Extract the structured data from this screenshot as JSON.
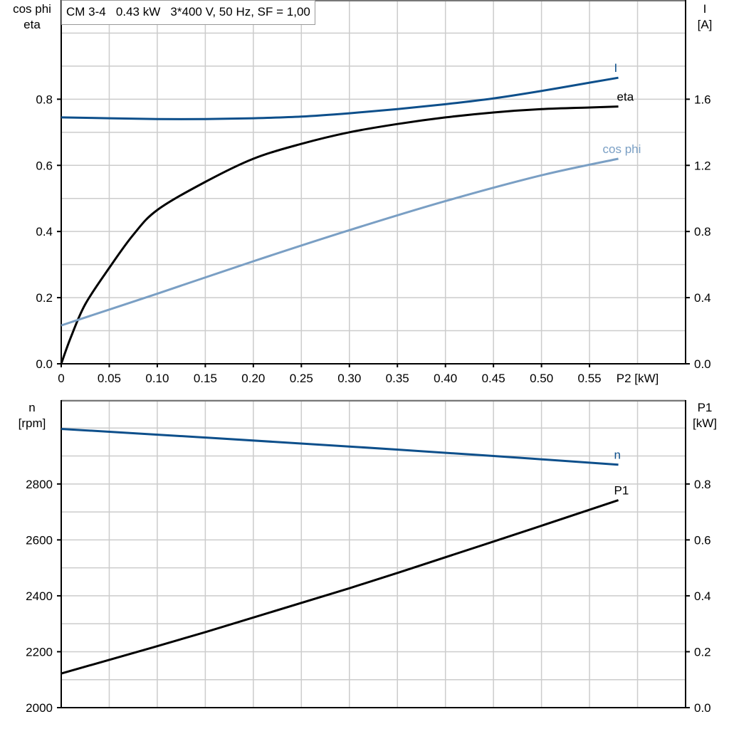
{
  "title": "CM 3-4   0.43 kW   3*400 V, 50 Hz, SF = 1,00",
  "colors": {
    "I": "#0d4f8b",
    "eta": "#000000",
    "cos_phi": "#7a9fc4",
    "n": "#0d4f8b",
    "P1": "#000000",
    "grid": "#cccccc"
  },
  "chart_data": [
    {
      "type": "line",
      "xlabel": "P2 [kW]",
      "ylabel_left": [
        "cos phi",
        "eta"
      ],
      "ylabel_right": [
        "I",
        "[A]"
      ],
      "xlim": [
        0,
        0.65
      ],
      "ylim_left": [
        0,
        1.1
      ],
      "ylim_right": [
        0,
        2.2
      ],
      "grid": true,
      "x_ticks": [
        "0",
        "0.05",
        "0.10",
        "0.15",
        "0.20",
        "0.25",
        "0.30",
        "0.35",
        "0.40",
        "0.45",
        "0.50",
        "0.55"
      ],
      "y_ticks_left": [
        "0.0",
        "0.2",
        "0.4",
        "0.6",
        "0.8"
      ],
      "y_ticks_right": [
        "0.0",
        "0.4",
        "0.8",
        "1.2",
        "1.6"
      ],
      "series": [
        {
          "name": "I",
          "axis": "right",
          "x": [
            0,
            0.05,
            0.1,
            0.15,
            0.2,
            0.25,
            0.3,
            0.35,
            0.4,
            0.45,
            0.5,
            0.55,
            0.58
          ],
          "y": [
            1.49,
            1.485,
            1.48,
            1.48,
            1.485,
            1.495,
            1.515,
            1.54,
            1.57,
            1.605,
            1.65,
            1.7,
            1.73
          ]
        },
        {
          "name": "eta",
          "axis": "left",
          "x": [
            0,
            0.01,
            0.025,
            0.05,
            0.075,
            0.1,
            0.15,
            0.2,
            0.25,
            0.3,
            0.35,
            0.4,
            0.45,
            0.5,
            0.55,
            0.58
          ],
          "y": [
            0,
            0.08,
            0.18,
            0.29,
            0.39,
            0.465,
            0.55,
            0.62,
            0.665,
            0.7,
            0.725,
            0.745,
            0.76,
            0.77,
            0.775,
            0.778
          ]
        },
        {
          "name": "cos phi",
          "axis": "left",
          "x": [
            0,
            0.1,
            0.2,
            0.3,
            0.4,
            0.5,
            0.58
          ],
          "y": [
            0.116,
            0.212,
            0.31,
            0.404,
            0.492,
            0.57,
            0.62
          ]
        }
      ]
    },
    {
      "type": "line",
      "ylabel_left": [
        "n",
        "[rpm]"
      ],
      "ylabel_right": [
        "P1",
        "[kW]"
      ],
      "xlim": [
        0,
        0.65
      ],
      "ylim_left": [
        2000,
        3100
      ],
      "ylim_right": [
        0,
        1.1
      ],
      "grid": true,
      "y_ticks_left": [
        "2000",
        "2200",
        "2400",
        "2600",
        "2800"
      ],
      "y_ticks_right": [
        "0.0",
        "0.2",
        "0.4",
        "0.6",
        "0.8"
      ],
      "series": [
        {
          "name": "n",
          "axis": "left",
          "x": [
            0,
            0.15,
            0.3,
            0.45,
            0.58
          ],
          "y": [
            2997,
            2966,
            2934,
            2900,
            2869
          ]
        },
        {
          "name": "P1",
          "axis": "right",
          "x": [
            0,
            0.15,
            0.3,
            0.45,
            0.58
          ],
          "y": [
            0.122,
            0.27,
            0.427,
            0.594,
            0.742
          ]
        }
      ]
    }
  ]
}
